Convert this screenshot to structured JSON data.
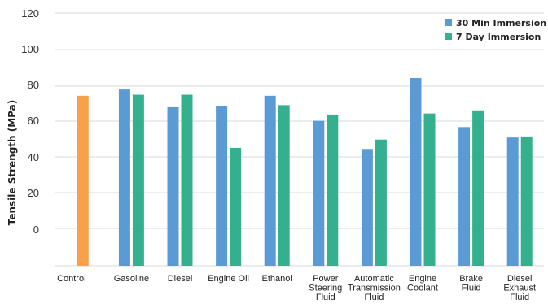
{
  "chart_data": {
    "type": "bar",
    "title": "",
    "xlabel": "",
    "ylabel": "Tensile Strength (MPa)",
    "ytick_labels": [
      "120",
      "100",
      "80",
      "60",
      "40",
      "20",
      "0"
    ],
    "categories": [
      [
        "Control"
      ],
      [
        "Gasoline"
      ],
      [
        "Diesel"
      ],
      [
        "Engine Oil"
      ],
      [
        "Ethanol"
      ],
      [
        "Power",
        "Steering",
        "Fluid"
      ],
      [
        "Automatic",
        "Transmission",
        "Fluid"
      ],
      [
        "Engine",
        "Coolant"
      ],
      [
        "Brake",
        "Fluid"
      ],
      [
        "Diesel",
        "Exhaust",
        "Fluid"
      ]
    ],
    "control": {
      "value": 81.5,
      "color": "#F7A24B"
    },
    "series": [
      {
        "name": "30 Min Immersion",
        "color": "#5B9BD5",
        "values": [
          null,
          84.5,
          76,
          76.5,
          81.5,
          69.5,
          56,
          90,
          66.5,
          61.5
        ]
      },
      {
        "name": "7 Day Immersion",
        "color": "#35B08E",
        "values": [
          null,
          82,
          82,
          56.5,
          77,
          72.5,
          60.5,
          73,
          74.5,
          62
        ]
      }
    ],
    "legend_position": "top-right",
    "grid": true
  }
}
